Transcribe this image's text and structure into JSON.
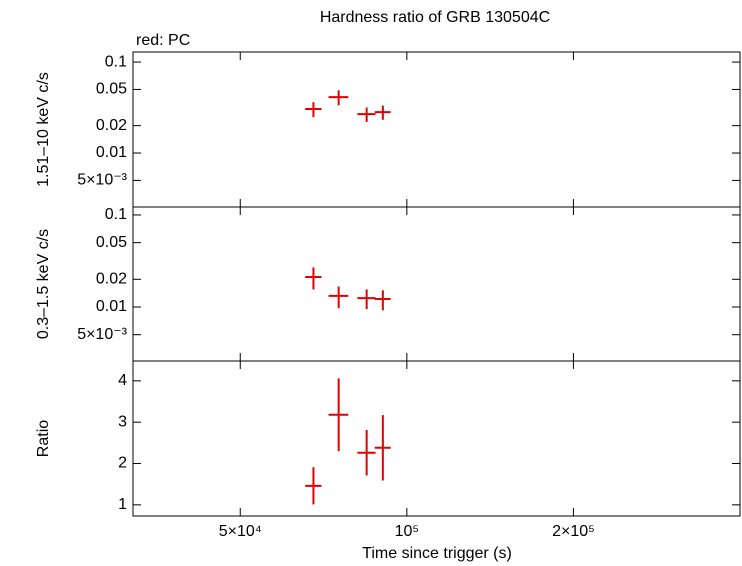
{
  "chart_data": [
    {
      "type": "scatter",
      "title": "Hardness ratio of GRB 130504C",
      "annotation": "red: PC",
      "ylabel": "1.51–10 keV c/s",
      "xlog": true,
      "ylog": true,
      "xlim": [
        32000,
        400000
      ],
      "ylim": [
        0.00255,
        0.129
      ],
      "yticks": [
        0.1,
        0.05,
        0.02,
        0.01,
        {
          "value": 0.005,
          "label": "5×10⁻³"
        }
      ],
      "x": [
        67800,
        75300,
        84600,
        90500
      ],
      "xerr": [
        2300,
        3100,
        3200,
        3000
      ],
      "series": [
        {
          "color": "#e00000",
          "values": [
            0.0305,
            0.0412,
            0.0268,
            0.0282
          ],
          "yerr": [
            0.0057,
            0.0077,
            0.0048,
            0.005
          ]
        }
      ]
    },
    {
      "type": "scatter",
      "ylabel": "0.3–1.5 keV c/s",
      "xlog": true,
      "ylog": true,
      "xlim": [
        32000,
        400000
      ],
      "ylim": [
        0.00259,
        0.122
      ],
      "yticks": [
        0.1,
        0.05,
        0.02,
        0.01,
        {
          "value": 0.005,
          "label": "5×10⁻³"
        }
      ],
      "x": [
        67800,
        75300,
        84600,
        90500
      ],
      "xerr": [
        2300,
        3100,
        3200,
        3000
      ],
      "series": [
        {
          "color": "#e00000",
          "values": [
            0.0212,
            0.0132,
            0.0125,
            0.0122
          ],
          "yerr": [
            0.0057,
            0.0035,
            0.003,
            0.003
          ]
        }
      ]
    },
    {
      "type": "scatter",
      "ylabel": "Ratio",
      "xlabel": "Time since trigger (s)",
      "xlog": true,
      "ylog": false,
      "xlim": [
        32000,
        400000
      ],
      "ylim": [
        0.73,
        4.48
      ],
      "yticks": [
        1,
        2,
        3,
        4
      ],
      "xticks": [
        {
          "value": 50000,
          "label": "5×10⁴"
        },
        {
          "value": 100000,
          "label": "10⁵"
        },
        {
          "value": 200000,
          "label": "2×10⁵"
        }
      ],
      "x": [
        67800,
        75300,
        84600,
        90500
      ],
      "xerr": [
        2300,
        3100,
        3200,
        3000
      ],
      "series": [
        {
          "color": "#e00000",
          "values": [
            1.46,
            3.18,
            2.26,
            2.38
          ],
          "yerr": [
            0.45,
            0.88,
            0.55,
            0.79
          ]
        }
      ]
    }
  ]
}
